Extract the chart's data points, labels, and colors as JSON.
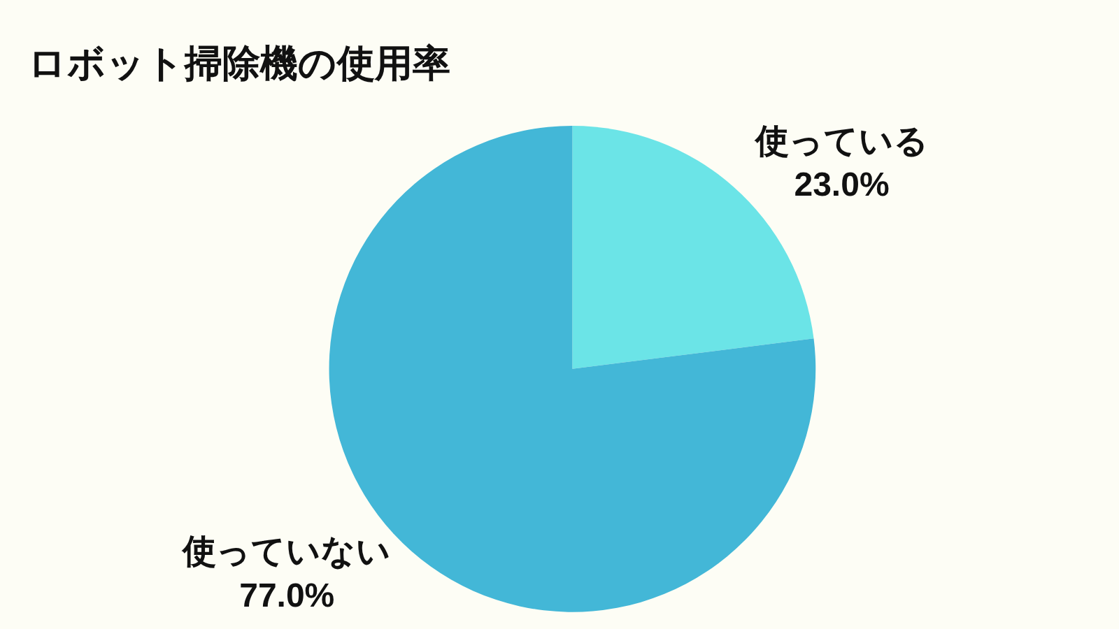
{
  "chart_data": {
    "type": "pie",
    "title": "ロボット掃除機の使用率",
    "categories": [
      "使っている",
      "使っていない"
    ],
    "values": [
      23.0,
      77.0
    ],
    "colors": [
      "#6be4e7",
      "#43b7d7"
    ],
    "value_labels": [
      "23.0%",
      "77.0%"
    ],
    "legend": false
  }
}
